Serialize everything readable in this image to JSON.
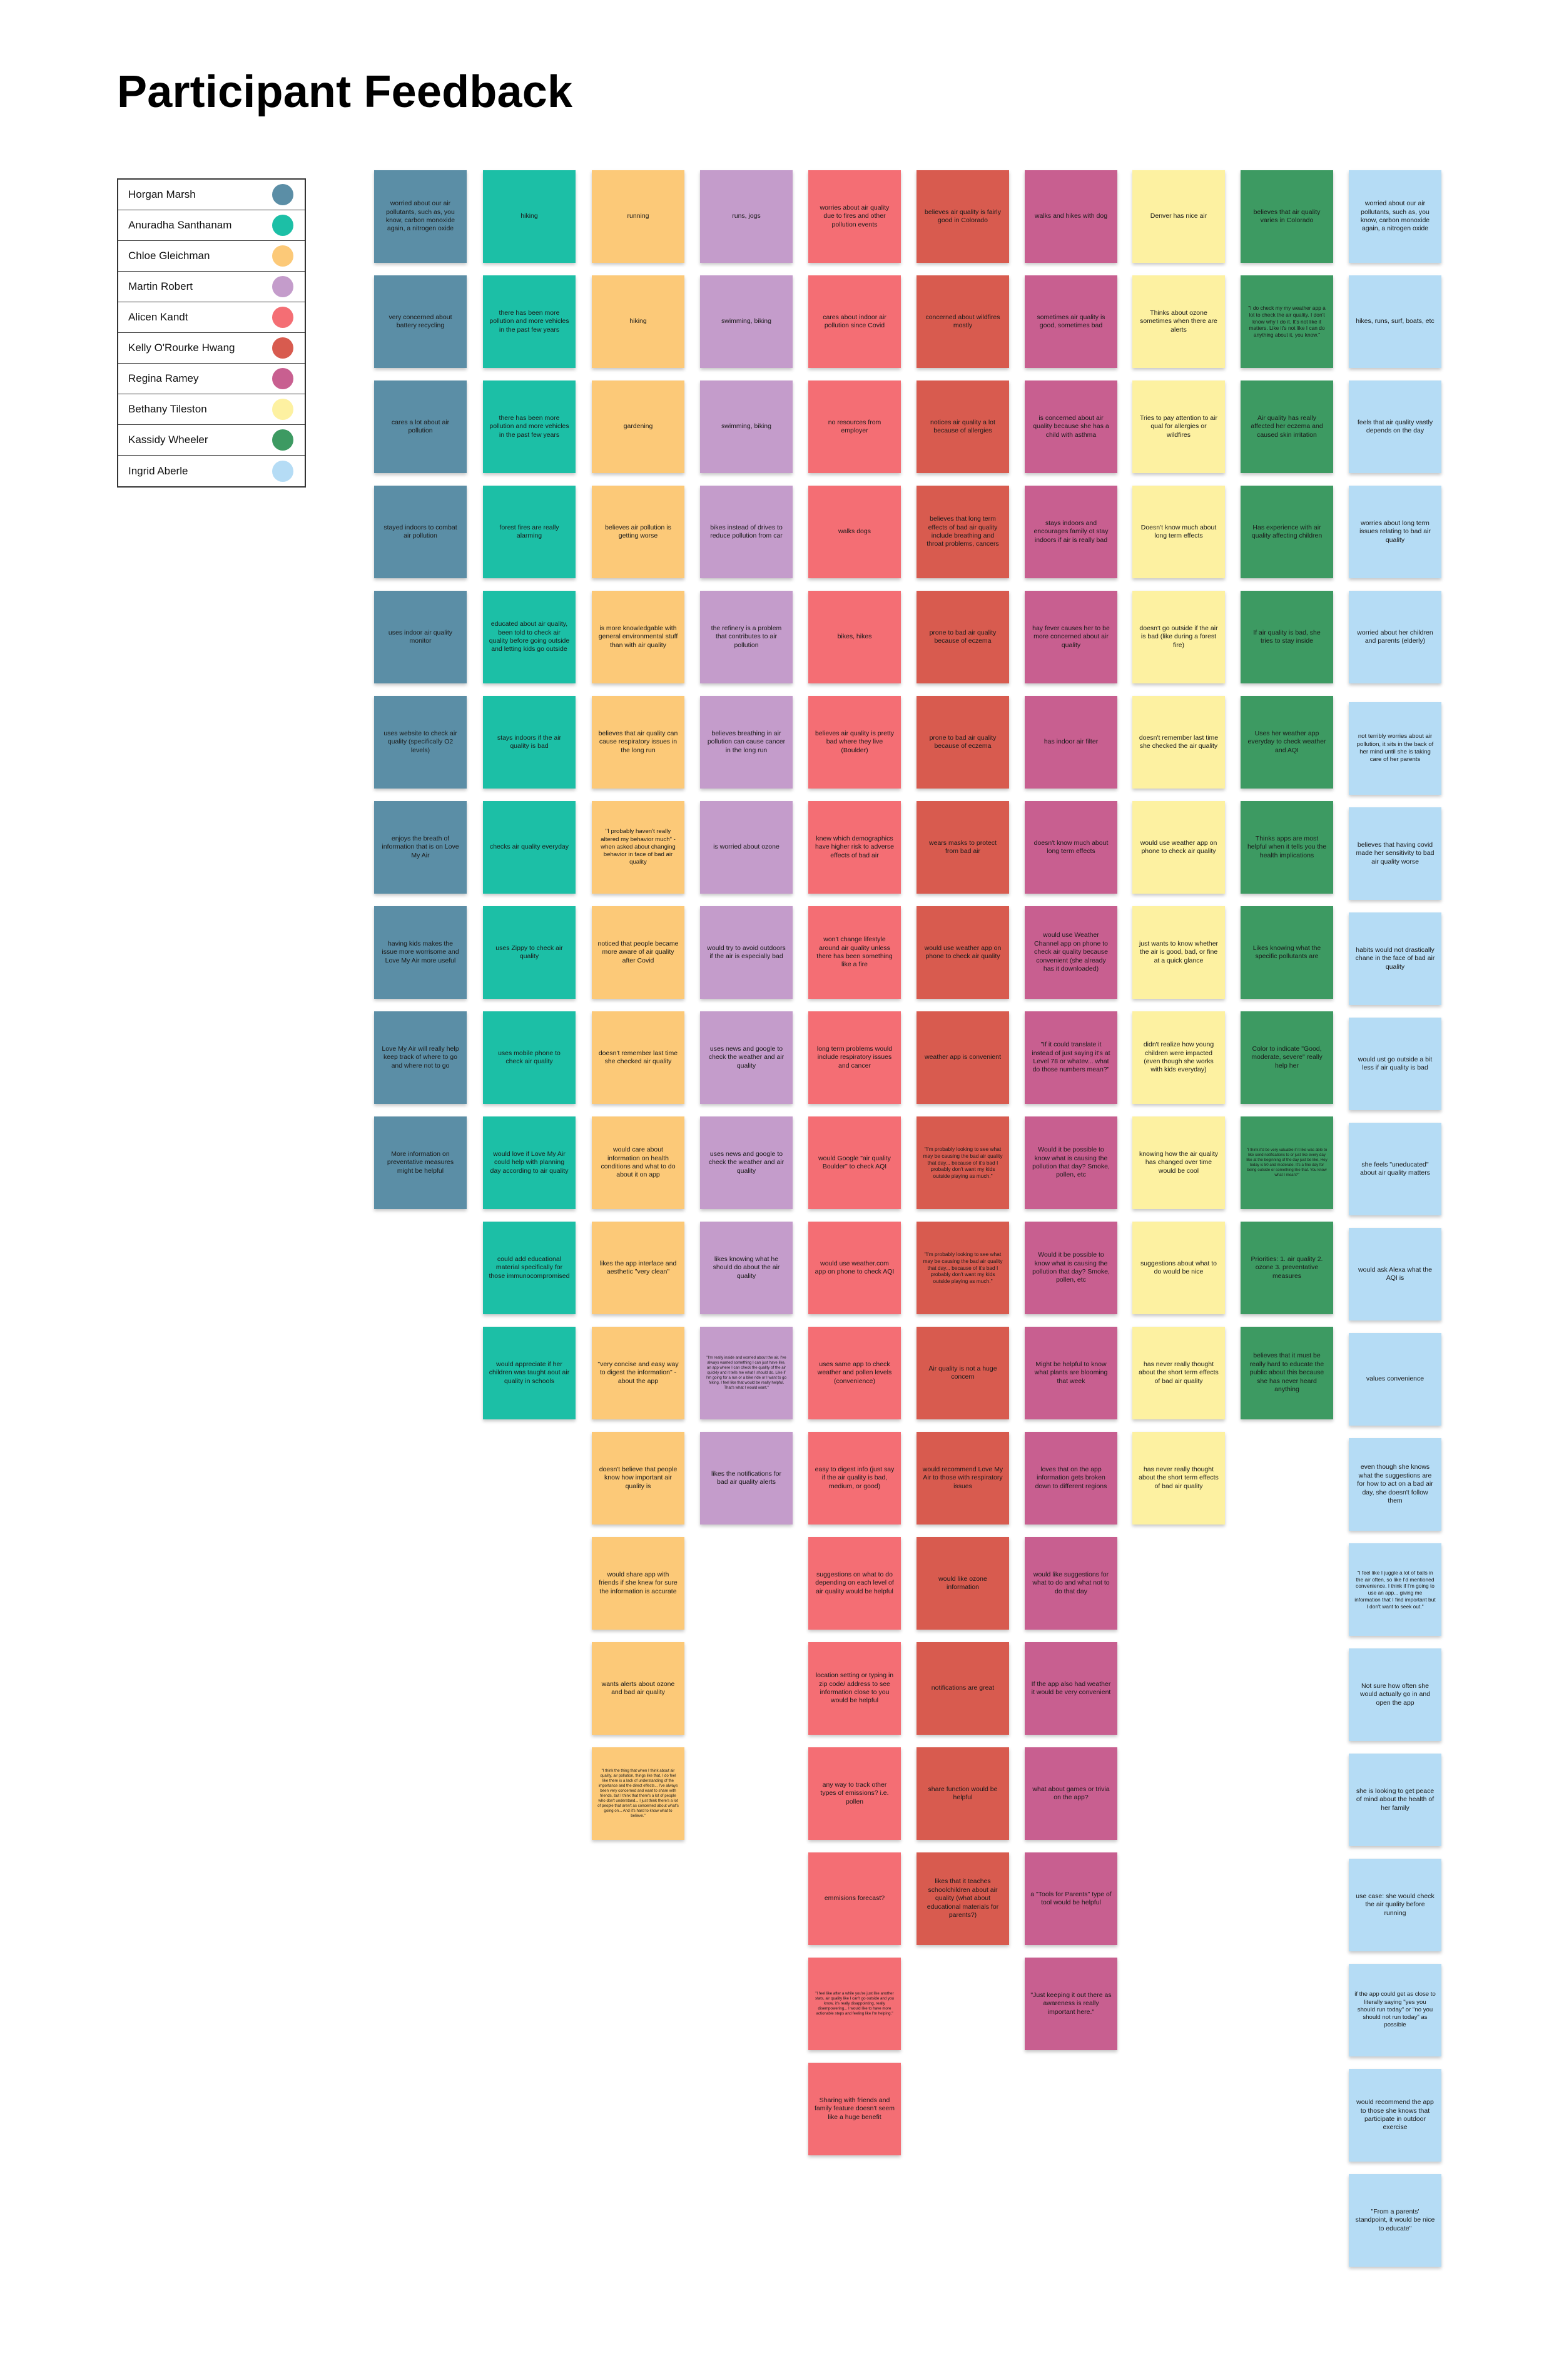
{
  "title": "Participant Feedback",
  "participants": [
    {
      "name": "Horgan Marsh",
      "color": "#5b8ea6"
    },
    {
      "name": "Anuradha Santhanam",
      "color": "#1cbfa6"
    },
    {
      "name": "Chloe Gleichman",
      "color": "#fcc978"
    },
    {
      "name": "Martin Robert",
      "color": "#c49ccb"
    },
    {
      "name": "Alicen Kandt",
      "color": "#f46e74"
    },
    {
      "name": "Kelly O'Rourke Hwang",
      "color": "#d85b4f"
    },
    {
      "name": "Regina Ramey",
      "color": "#c85f90"
    },
    {
      "name": "Bethany Tileston",
      "color": "#fdf1a1"
    },
    {
      "name": "Kassidy Wheeler",
      "color": "#3d9a62"
    },
    {
      "name": "Ingrid Aberle",
      "color": "#b5dcf5"
    }
  ],
  "columns": [
    {
      "notes": [
        "worried about our air pollutants, such as, you know, carbon monoxide again, a nitrogen oxide",
        "very concerned about battery recycling",
        "cares a lot about air pollution",
        "stayed indoors to combat air pollution",
        "uses indoor air quality monitor",
        "uses website to check air quality (specifically O2 levels)",
        "enjoys the breath of information that is on Love My Air",
        "having kids makes the issue more worrisome and Love My Air more useful",
        "Love My Air will really help keep track of where to go and where not to go",
        "More information on preventative measures might be helpful"
      ]
    },
    {
      "notes": [
        "hiking",
        "there has been more pollution and more vehicles in the past few years",
        "there has been more pollution and more vehicles in the past few years",
        "forest fires are really alarming",
        "educated about air quality, been told to check air quality before going outside and letting kids go outside",
        "stays indoors if the air quality is bad",
        "checks air quality everyday",
        "uses Zippy to check air quality",
        "uses mobile phone to check air quality",
        "would love if Love My Air could help with planning day according to air quality",
        "could add educational material specifically for those immunocompromised",
        "would appreciate if her children was taught aout air quality in schools"
      ]
    },
    {
      "notes": [
        "running",
        "hiking",
        "gardening",
        "believes air pollution is getting worse",
        "is more knowledgable with general environmental stuff than with air quality",
        "believes that air quality can cause respiratory issues in the long run",
        "\"I probably haven't really altered my behavior much\" - when asked about changing behavior in face of bad air quality",
        "noticed that people became more aware of air quality after Covid",
        "doesn't remember last time she checked air quality",
        "would care about information on health conditions and what to do about it on app",
        "likes the app interface and aesthetic \"very clean\"",
        "\"very concise and easy way to digest the information\" - about the app",
        "doesn't believe that people know how important air quality is",
        "would share app with friends if she knew for sure the information is accurate",
        "wants alerts about ozone and bad air quality",
        "\"I think the thing that when I think about air quality, air pollution, things like that, I do feel like there is a lack of understanding of the importance and the direct effects... I've always been very concerned and want to share with friends, but I think that there's a lot of people who don't understand... I just think there's a lot of people that aren't as concerned about what's going on... And it's hard to know what to believe.\""
      ]
    },
    {
      "notes": [
        "runs, jogs",
        "swimming, biking",
        "swimming, biking",
        "bikes instead of drives to reduce pollution from car",
        "the refinery is a problem that contributes to air pollution",
        "believes breathing in air pollution can cause cancer in the long run",
        "is worried about ozone",
        "would try to avoid outdoors if the air is especially bad",
        "uses news and google to check the weather and air quality",
        "uses news and google to check the weather and air quality",
        "likes knowing what he should do about the air quality",
        "\"I'm really inside and worried about the air. I've always wanted something I can just have like, an app where I can check the quality of the air quickly and it tells me what I should do. Like if I'm going for a run or a bike ride or I want to go hiking. I feel like that would be really helpful. That's what I would want.\"",
        "likes the notifications for bad air quality alerts"
      ]
    },
    {
      "notes": [
        "worries about air quality due to fires and other pollution events",
        "cares about indoor air pollution since Covid",
        "no resources from employer",
        "walks dogs",
        "bikes, hikes",
        "believes air quality is pretty bad where they live (Boulder)",
        "knew which demographics have higher risk to adverse effects of bad air",
        "won't change lifestyle around air quality unless there has been something like a fire",
        "long term problems would include respiratory issues and cancer",
        "would Google \"air quality Boulder\" to check AQI",
        "would use weather.com app on phone to check AQI",
        "uses same app to check weather and pollen levels (convenience)",
        "easy to digest info (just say if the air quality is bad, medium, or good)",
        "suggestions on what to do depending on each level of air quality would be helpful",
        "location setting or typing in zip code/ address to see information close to you would be helpful",
        "any way to track other types of emissions? i.e. pollen",
        "emmisions forecast?",
        "\"I feel like after a while you're just like another stats, air quality like I can't go outside and you know, it's really disappointing, really disempowering... I would like to have more actionable steps and feeling like I'm helping.\"",
        "Sharing with friends and family feature doesn't seem like a huge benefit"
      ]
    },
    {
      "notes": [
        "believes air quality is fairly good in Colorado",
        "concerned about wildfires mostly",
        "notices air quality a lot because of allergies",
        "believes that long term effects of bad air quality include breathing and throat problems, cancers",
        "prone to bad air quality because of eczema",
        "prone to bad air quality because of eczema",
        "wears masks to protect from bad air",
        "would use weather app on phone to check air quality",
        "weather app is convenient",
        "\"I'm probably looking to see what may be causing the bad air quality that day... because of it's bad I probably don't want my kids outside playing as much.\"",
        "\"I'm probably looking to see what may be causing the bad air quality that day... because of it's bad I probably don't want my kids outside playing as much.\"",
        "Air quality is not a huge concern",
        "would recommend Love My Air to those with respiratory issues",
        "would like ozone information",
        "notifications are great",
        "share function would be helpful",
        "likes that it teaches schoolchildren about air quality (what about educational materials for parents?)"
      ]
    },
    {
      "notes": [
        "walks and hikes with dog",
        "sometimes air quality is good, sometimes bad",
        "is concerned about air quality because she has a child with asthma",
        "stays indoors and encourages family ot stay indoors if air is really bad",
        "hay fever causes her to be more concerned about air quality",
        "has indoor air filter",
        "doesn't know much about long term effects",
        "would use Weather Channel app on phone to check air quality because convenient (she already has it downloaded)",
        "\"If it could translate it instead of just saying it's at Level 78 or whatev... what do those numbers mean?\"",
        "Would it be possible to know what is causing the pollution that day? Smoke, pollen, etc",
        "Would it be possible to know what is causing the pollution that day? Smoke, pollen, etc",
        "Might be helpful to know what plants are blooming that week",
        "loves that on the app information gets broken down to different regions",
        "would like suggestions for what to do and what not to do that day",
        "If the app also had weather it would be very convenient",
        "what about games or trivia on the app?",
        "a \"Tools for Parents\" type of tool would be helpful",
        "\"Just keeping it out there as awareness is really important here.\""
      ]
    },
    {
      "notes": [
        "Denver has nice air",
        "Thinks about ozone sometimes when there are alerts",
        "Tries to pay attention to air qual for allergies or wildfires",
        "Doesn't know much about long term effects",
        "doesn't go outside if the air is bad (like during a forest fire)",
        "doesn't remember last time she checked the air quality",
        "would use weather app on phone to check air quality",
        "just wants to know whether the air is good, bad, or fine at a quick glance",
        "didn't realize how young children were impacted (even though she works with kids everyday)",
        "knowing how the air quality has changed over time would be cool",
        "suggestions about what to do would be nice",
        "has never really thought about the short term effects of bad air quality",
        "has never really thought about the short term effects of bad air quality"
      ]
    },
    {
      "notes": [
        "believes that air quality varies in Colorado",
        "\"I do check my my weather app a lot to check the air quality. I don't know why I do it. It's not like it matters. Like it's not like I can do anything about it, you know.\"",
        "Air quality has really affected her eczema and caused skin irritation",
        "Has experience with air quality affecting children",
        "If air quality is bad, she tries to stay inside",
        "Uses her weather app everyday to check weather and AQI",
        "Thinks apps are most helpful when it tells you the health implications",
        "Likes knowing what the specific pollutants are",
        "Color to indicate \"Good, moderate, severe\" really help her",
        "\"I think it'd be very valuable if it like was able to like send notifications to or just like every day like at the beginning of the day just be like, Hey today is 50 and moderate. It's a fine day for being outside or something like that. You know what I mean?\"",
        "Priorities: 1. air quality 2. ozone 3. preventative measures",
        "believes that it must be really hard to educate the public about this because she has never heard anything"
      ]
    },
    {
      "notes": [
        "worried about our air pollutants, such as, you know, carbon monoxide again, a nitrogen oxide",
        "hikes, runs, surf, boats, etc",
        "feels that air quality vastly depends on the day",
        "worries about long term issues relating to bad air quality",
        "worried about her children and parents (elderly)",
        "not terribly worries about air pollution, it sits in the back of her mind until she is taking care of her parents",
        "believes that having covid made her sensitivity to bad air quality worse",
        "habits would not drastically chane in the face of bad air quality",
        "would ust go outside a bit less if air quality is bad",
        "she feels \"uneducated\" about air quality matters",
        "would ask Alexa what the AQI is",
        "values convenience",
        "even though she knows what the suggestions are for how to act on a bad air day, she doesn't follow them",
        "\"I feel like I juggle a lot of balls in the air often, so like I'd mentioned convenience. I think if I'm going to use an app... giving me information that I find important but I don't want to seek out.\"",
        "Not sure how often she would actually go in and open the app",
        "she is looking to get peace of mind about the health of her family",
        "use case: she would check the air quality before running",
        "if the app could get as close to literally saying \"yes you should run today\" or \"no you should not run today\" as possible",
        "would recommend the app to those she knows that participate in outdoor exercise",
        "\"From a parents' standpoint, it would be nice to educate\""
      ]
    }
  ]
}
